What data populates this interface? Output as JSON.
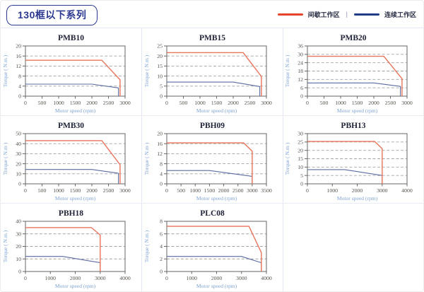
{
  "header": {
    "title": "130框以下系列",
    "legend": [
      {
        "label": "间歇工作区",
        "color": "#e8432b"
      },
      {
        "label": "连续工作区",
        "color": "#1f3d87"
      }
    ],
    "legend_separator": "|"
  },
  "colors": {
    "grid": "#a3a3a3",
    "frame": "#666666",
    "accent": "#2b3990"
  },
  "chart_data": [
    {
      "type": "line",
      "title": "PMB10",
      "xlabel": "Motor speed (rpm)",
      "ylabel": "Torque ( N.m )",
      "xlim": [
        0,
        3000
      ],
      "xtick_step": 500,
      "ylim": [
        0,
        20
      ],
      "ytick_step": 4,
      "grid": "horizontal-dashed",
      "legend_position": "none",
      "series": [
        {
          "name": "间歇工作区",
          "color": "#e8745c",
          "width": 1.4,
          "points": [
            [
              0,
              14.3
            ],
            [
              2300,
              14.3
            ],
            [
              2850,
              6.5
            ],
            [
              2850,
              0
            ]
          ]
        },
        {
          "name": "连续工作区",
          "color": "#5b6ba0",
          "width": 1.1,
          "points": [
            [
              0,
              4.8
            ],
            [
              2000,
              4.8
            ],
            [
              2800,
              3.3
            ],
            [
              2800,
              0
            ]
          ]
        }
      ]
    },
    {
      "type": "line",
      "title": "PMB15",
      "xlabel": "Motor speed (rpm)",
      "ylabel": "Torque ( N.m )",
      "xlim": [
        0,
        3000
      ],
      "xtick_step": 500,
      "ylim": [
        0,
        25
      ],
      "ytick_step": 5,
      "grid": "horizontal-dashed",
      "legend_position": "none",
      "series": [
        {
          "name": "间歇工作区",
          "color": "#e8745c",
          "width": 1.4,
          "points": [
            [
              0,
              21.7
            ],
            [
              2300,
              21.7
            ],
            [
              2850,
              9.8
            ],
            [
              2850,
              0
            ]
          ]
        },
        {
          "name": "连续工作区",
          "color": "#5b6ba0",
          "width": 1.1,
          "points": [
            [
              0,
              7
            ],
            [
              2000,
              7
            ],
            [
              2800,
              4.8
            ],
            [
              2800,
              0
            ]
          ]
        }
      ]
    },
    {
      "type": "line",
      "title": "PMB20",
      "xlabel": "Motor speed (rpm)",
      "ylabel": "Torque ( N.m )",
      "xlim": [
        0,
        3000
      ],
      "xtick_step": 500,
      "ylim": [
        0,
        36
      ],
      "ytick_step": 6,
      "grid": "horizontal-dashed",
      "legend_position": "none",
      "series": [
        {
          "name": "间歇工作区",
          "color": "#e8745c",
          "width": 1.4,
          "points": [
            [
              0,
              28.6
            ],
            [
              2300,
              28.6
            ],
            [
              2850,
              12.5
            ],
            [
              2850,
              0
            ]
          ]
        },
        {
          "name": "连续工作区",
          "color": "#5b6ba0",
          "width": 1.1,
          "points": [
            [
              0,
              9.5
            ],
            [
              2000,
              9.5
            ],
            [
              2800,
              7
            ],
            [
              2800,
              0
            ]
          ]
        }
      ]
    },
    {
      "type": "line",
      "title": "PMB30",
      "xlabel": "Motor speed (rpm)",
      "ylabel": "Torque ( N.m )",
      "xlim": [
        0,
        3000
      ],
      "xtick_step": 500,
      "ylim": [
        0,
        50
      ],
      "ytick_step": 10,
      "grid": "horizontal-dashed",
      "legend_position": "none",
      "series": [
        {
          "name": "间歇工作区",
          "color": "#e8745c",
          "width": 1.4,
          "points": [
            [
              0,
              43
            ],
            [
              2300,
              43
            ],
            [
              2850,
              19
            ],
            [
              2850,
              0
            ]
          ]
        },
        {
          "name": "连续工作区",
          "color": "#5b6ba0",
          "width": 1.1,
          "points": [
            [
              0,
              14.3
            ],
            [
              2000,
              14.3
            ],
            [
              2800,
              10.5
            ],
            [
              2800,
              0
            ]
          ]
        }
      ]
    },
    {
      "type": "line",
      "title": "PBH09",
      "xlabel": "Motor speed (rpm)",
      "ylabel": "Torque ( N.m )",
      "xlim": [
        0,
        3500
      ],
      "xtick_step": 500,
      "ylim": [
        0,
        20
      ],
      "ytick_step": 4,
      "grid": "horizontal-dashed",
      "legend_position": "none",
      "series": [
        {
          "name": "间歇工作区",
          "color": "#e8745c",
          "width": 1.4,
          "points": [
            [
              0,
              16.3
            ],
            [
              2700,
              16.3
            ],
            [
              3000,
              13
            ],
            [
              3000,
              0
            ]
          ]
        },
        {
          "name": "连续工作区",
          "color": "#5b6ba0",
          "width": 1.1,
          "points": [
            [
              0,
              5.3
            ],
            [
              1500,
              5.3
            ],
            [
              3000,
              3
            ],
            [
              3000,
              0
            ]
          ]
        }
      ]
    },
    {
      "type": "line",
      "title": "PBH13",
      "xlabel": "Motor speed (rpm)",
      "ylabel": "Torque ( N.m )",
      "xlim": [
        0,
        4000
      ],
      "xtick_step": 1000,
      "ylim": [
        0,
        30
      ],
      "ytick_step": 5,
      "grid": "horizontal-dashed",
      "legend_position": "none",
      "series": [
        {
          "name": "间歇工作区",
          "color": "#e8745c",
          "width": 1.4,
          "points": [
            [
              0,
              25.3
            ],
            [
              2700,
              25.3
            ],
            [
              3000,
              21
            ],
            [
              3000,
              0
            ]
          ]
        },
        {
          "name": "连续工作区",
          "color": "#5b6ba0",
          "width": 1.1,
          "points": [
            [
              0,
              8.5
            ],
            [
              1500,
              8.5
            ],
            [
              3000,
              5
            ],
            [
              3000,
              0
            ]
          ]
        }
      ]
    },
    {
      "type": "line",
      "title": "PBH18",
      "xlabel": "Motor speed (rpm)",
      "ylabel": "Torque ( N.m )",
      "xlim": [
        0,
        4000
      ],
      "xtick_step": 1000,
      "ylim": [
        0,
        40
      ],
      "ytick_step": 10,
      "grid": "horizontal-dashed",
      "legend_position": "none",
      "series": [
        {
          "name": "间歇工作区",
          "color": "#e8745c",
          "width": 1.4,
          "points": [
            [
              0,
              35
            ],
            [
              2650,
              35
            ],
            [
              3000,
              29
            ],
            [
              3000,
              0
            ]
          ]
        },
        {
          "name": "连续工作区",
          "color": "#5b6ba0",
          "width": 1.1,
          "points": [
            [
              0,
              12
            ],
            [
              1500,
              12
            ],
            [
              3000,
              7
            ],
            [
              3000,
              0
            ]
          ]
        }
      ]
    },
    {
      "type": "line",
      "title": "PLC08",
      "xlabel": "Motor speed (rpm)",
      "ylabel": "Torque ( N.m )",
      "xlim": [
        0,
        4000
      ],
      "xtick_step": 1000,
      "ylim": [
        0,
        8
      ],
      "ytick_step": 2,
      "grid": "horizontal-dashed",
      "legend_position": "none",
      "series": [
        {
          "name": "间歇工作区",
          "color": "#e8745c",
          "width": 1.4,
          "points": [
            [
              0,
              7.2
            ],
            [
              3300,
              7.2
            ],
            [
              3800,
              3
            ],
            [
              3800,
              0
            ]
          ]
        },
        {
          "name": "连续工作区",
          "color": "#5b6ba0",
          "width": 1.1,
          "points": [
            [
              0,
              2.4
            ],
            [
              3000,
              2.4
            ],
            [
              3800,
              1.4
            ],
            [
              3800,
              0
            ]
          ]
        }
      ]
    }
  ]
}
